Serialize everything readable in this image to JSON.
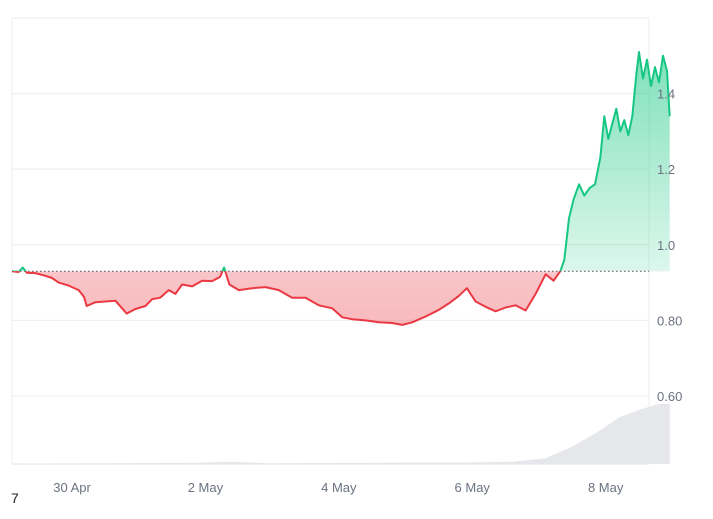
{
  "chart_data": {
    "type": "area",
    "title": "",
    "baseline": 0.93,
    "ylim": [
      0.42,
      1.6
    ],
    "yticks": [
      {
        "value": 1.4,
        "label": "1.4"
      },
      {
        "value": 1.2,
        "label": "1.2"
      },
      {
        "value": 1.0,
        "label": "1.0"
      },
      {
        "value": 0.8,
        "label": "0.80"
      },
      {
        "value": 0.6,
        "label": "0.60"
      }
    ],
    "xticks": [
      {
        "value": 0.9,
        "label": "30 Apr"
      },
      {
        "value": 2.9,
        "label": "2 May"
      },
      {
        "value": 4.9,
        "label": "4 May"
      },
      {
        "value": 6.9,
        "label": "6 May"
      },
      {
        "value": 8.9,
        "label": "8 May"
      }
    ],
    "xlim": [
      0,
      9.55
    ],
    "colors": {
      "up": "#16c784",
      "down": "#ea3943",
      "up_fill": "#16c784",
      "down_fill": "#ea3943",
      "grid": "#eeeeee",
      "volume": "#e6e7ea"
    },
    "series": [
      {
        "values": [
          [
            0.0,
            0.93
          ],
          [
            0.1,
            0.928
          ],
          [
            0.16,
            0.94
          ],
          [
            0.22,
            0.926
          ],
          [
            0.35,
            0.925
          ],
          [
            0.5,
            0.918
          ],
          [
            0.6,
            0.912
          ],
          [
            0.7,
            0.9
          ],
          [
            0.85,
            0.892
          ],
          [
            1.0,
            0.88
          ],
          [
            1.08,
            0.862
          ],
          [
            1.12,
            0.838
          ],
          [
            1.25,
            0.848
          ],
          [
            1.4,
            0.85
          ],
          [
            1.55,
            0.852
          ],
          [
            1.65,
            0.832
          ],
          [
            1.72,
            0.818
          ],
          [
            1.85,
            0.83
          ],
          [
            2.0,
            0.838
          ],
          [
            2.1,
            0.856
          ],
          [
            2.22,
            0.86
          ],
          [
            2.35,
            0.88
          ],
          [
            2.45,
            0.87
          ],
          [
            2.55,
            0.895
          ],
          [
            2.7,
            0.89
          ],
          [
            2.85,
            0.905
          ],
          [
            3.0,
            0.904
          ],
          [
            3.12,
            0.915
          ],
          [
            3.18,
            0.94
          ],
          [
            3.26,
            0.895
          ],
          [
            3.4,
            0.88
          ],
          [
            3.6,
            0.885
          ],
          [
            3.8,
            0.888
          ],
          [
            4.0,
            0.88
          ],
          [
            4.2,
            0.86
          ],
          [
            4.4,
            0.86
          ],
          [
            4.6,
            0.84
          ],
          [
            4.8,
            0.832
          ],
          [
            4.95,
            0.808
          ],
          [
            5.1,
            0.803
          ],
          [
            5.3,
            0.8
          ],
          [
            5.5,
            0.795
          ],
          [
            5.7,
            0.793
          ],
          [
            5.85,
            0.788
          ],
          [
            6.0,
            0.795
          ],
          [
            6.2,
            0.81
          ],
          [
            6.4,
            0.828
          ],
          [
            6.55,
            0.845
          ],
          [
            6.7,
            0.865
          ],
          [
            6.82,
            0.885
          ],
          [
            6.95,
            0.85
          ],
          [
            7.1,
            0.836
          ],
          [
            7.25,
            0.824
          ],
          [
            7.4,
            0.834
          ],
          [
            7.55,
            0.84
          ],
          [
            7.7,
            0.826
          ],
          [
            7.85,
            0.87
          ],
          [
            8.0,
            0.922
          ],
          [
            8.12,
            0.905
          ],
          [
            8.22,
            0.93
          ],
          [
            8.28,
            0.96
          ],
          [
            8.35,
            1.07
          ],
          [
            8.42,
            1.12
          ],
          [
            8.5,
            1.16
          ],
          [
            8.58,
            1.13
          ],
          [
            8.66,
            1.15
          ],
          [
            8.74,
            1.16
          ],
          [
            8.82,
            1.23
          ],
          [
            8.88,
            1.34
          ],
          [
            8.94,
            1.28
          ],
          [
            9.0,
            1.32
          ],
          [
            9.06,
            1.36
          ],
          [
            9.12,
            1.3
          ],
          [
            9.18,
            1.33
          ],
          [
            9.24,
            1.29
          ],
          [
            9.3,
            1.34
          ],
          [
            9.36,
            1.45
          ],
          [
            9.4,
            1.51
          ],
          [
            9.46,
            1.44
          ],
          [
            9.52,
            1.49
          ],
          [
            9.58,
            1.42
          ],
          [
            9.64,
            1.47
          ],
          [
            9.7,
            1.43
          ],
          [
            9.76,
            1.5
          ],
          [
            9.82,
            1.46
          ],
          [
            9.86,
            1.34
          ]
        ]
      }
    ],
    "volume": [
      [
        0.0,
        0.001
      ],
      [
        2.8,
        0.003
      ],
      [
        3.3,
        0.006
      ],
      [
        3.8,
        0.002
      ],
      [
        6.9,
        0.004
      ],
      [
        7.5,
        0.006
      ],
      [
        8.0,
        0.015
      ],
      [
        8.4,
        0.045
      ],
      [
        8.8,
        0.085
      ],
      [
        9.1,
        0.12
      ],
      [
        9.4,
        0.14
      ],
      [
        9.7,
        0.155
      ],
      [
        9.86,
        0.155
      ]
    ]
  },
  "footer": {
    "stray_text": "7"
  }
}
